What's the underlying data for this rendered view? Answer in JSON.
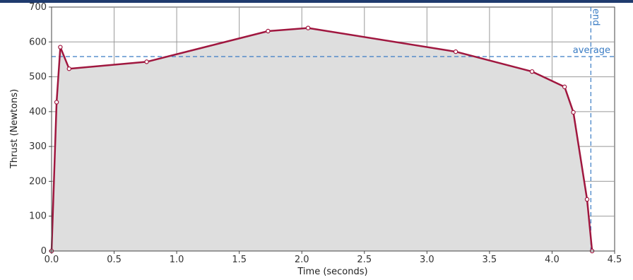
{
  "colors": {
    "series": "#a0173f",
    "area_fill": "#dedede",
    "reference": "#3a7cc4",
    "header": "#1f3b6e"
  },
  "chart_data": {
    "type": "area",
    "title": "",
    "xlabel": "Time (seconds)",
    "ylabel": "Thrust (Newtons)",
    "xlim": [
      0,
      4.5
    ],
    "ylim": [
      0,
      700
    ],
    "x_ticks": [
      0,
      0.5,
      1,
      1.5,
      2,
      2.5,
      3,
      3.5,
      4,
      4.5
    ],
    "x_tick_labels": [
      "0.0",
      "0.5",
      "1.0",
      "1.5",
      "2.0",
      "2.5",
      "3.0",
      "3.5",
      "4.0",
      "4.5"
    ],
    "y_ticks": [
      0,
      100,
      200,
      300,
      400,
      500,
      600,
      700
    ],
    "y_tick_labels": [
      "0",
      "100",
      "200",
      "300",
      "400",
      "500",
      "600",
      "700"
    ],
    "grid": true,
    "series": [
      {
        "x": [
          0.0,
          0.04,
          0.07,
          0.14,
          0.76,
          1.73,
          2.05,
          3.23,
          3.84,
          4.1,
          4.17,
          4.28,
          4.32
        ],
        "y": [
          0,
          427,
          585,
          523,
          543,
          631,
          640,
          572,
          515,
          471,
          398,
          148,
          0
        ]
      }
    ],
    "reference_lines": [
      {
        "label": "average",
        "axis": "y",
        "value": 558
      },
      {
        "label": "end",
        "axis": "x",
        "value": 4.31
      }
    ]
  }
}
